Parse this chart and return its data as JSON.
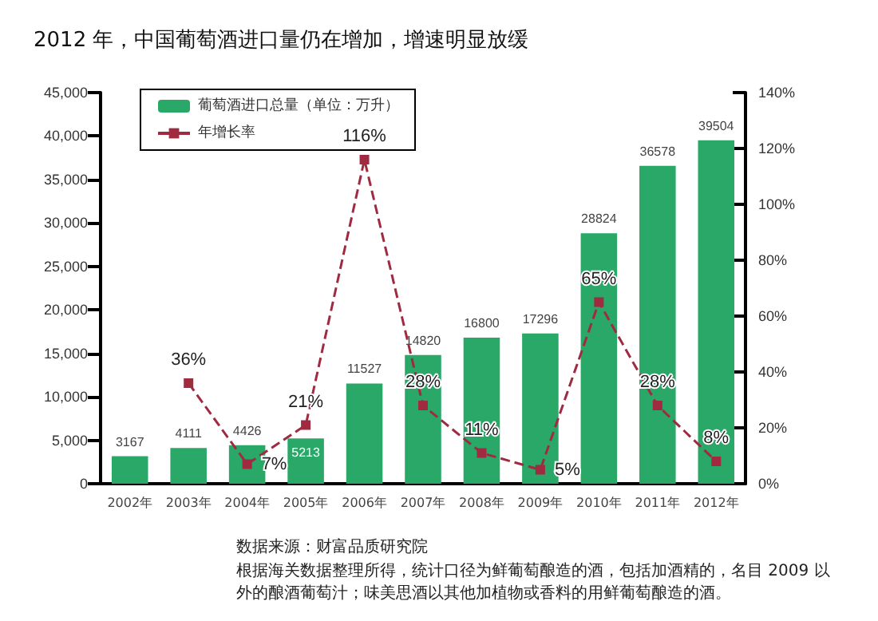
{
  "chart_data": {
    "type": "bar",
    "title": "2012 年，中国葡萄酒进口量仍在增加，增速明显放缓",
    "categories": [
      "2002年",
      "2003年",
      "2004年",
      "2005年",
      "2006年",
      "2007年",
      "2008年",
      "2009年",
      "2010年",
      "2011年",
      "2012年"
    ],
    "series": [
      {
        "name": "葡萄酒进口总量（单位：万升）",
        "color": "#2aa868",
        "values": [
          3167,
          4111,
          4426,
          5213,
          11527,
          14820,
          16800,
          17296,
          28824,
          36578,
          39504
        ]
      },
      {
        "name": "年增长率",
        "type": "line",
        "axis": "y2",
        "color": "#a02a40",
        "marker": "square",
        "line_style": "dashed",
        "values": [
          null,
          36,
          7,
          21,
          116,
          28,
          11,
          5,
          65,
          28,
          8
        ],
        "value_labels": [
          null,
          "36%",
          "7%",
          "21%",
          "116%",
          "28%",
          "11%",
          "5%",
          "65%",
          "28%",
          "8%"
        ]
      }
    ],
    "ylim": [
      0,
      45000
    ],
    "yticks": [
      0,
      {
        "value": 5000,
        "label": "5,000"
      },
      {
        "value": 10000,
        "label": "10,000"
      },
      {
        "value": 15000,
        "label": "15,000"
      },
      {
        "value": 20000,
        "label": "20,000"
      },
      {
        "value": 25000,
        "label": "25,000"
      },
      {
        "value": 30000,
        "label": "30,000"
      },
      {
        "value": 35000,
        "label": "35,000"
      },
      {
        "value": 40000,
        "label": "40,000"
      },
      {
        "value": 45000,
        "label": "45,000"
      }
    ],
    "y2lim": [
      0,
      140
    ],
    "y2ticks": [
      {
        "value": 0,
        "label": "0%"
      },
      {
        "value": 20,
        "label": "20%"
      },
      {
        "value": 40,
        "label": "40%"
      },
      {
        "value": 60,
        "label": "60%"
      },
      {
        "value": 80,
        "label": "80%"
      },
      {
        "value": 100,
        "label": "100%"
      },
      {
        "value": 120,
        "label": "120%"
      },
      {
        "value": 140,
        "label": "140%"
      }
    ],
    "data_labels": true,
    "grid": false,
    "legend": "top left",
    "annotations": [
      "数据来源：财富品质研究院",
      "根据海关数据整理所得，统计口径为鲜葡萄酿造的酒，包括加酒精的，名目 2009 以外的酿酒葡萄汁；味美思酒以其他加植物或香料的用鲜葡萄酿造的酒。"
    ]
  }
}
